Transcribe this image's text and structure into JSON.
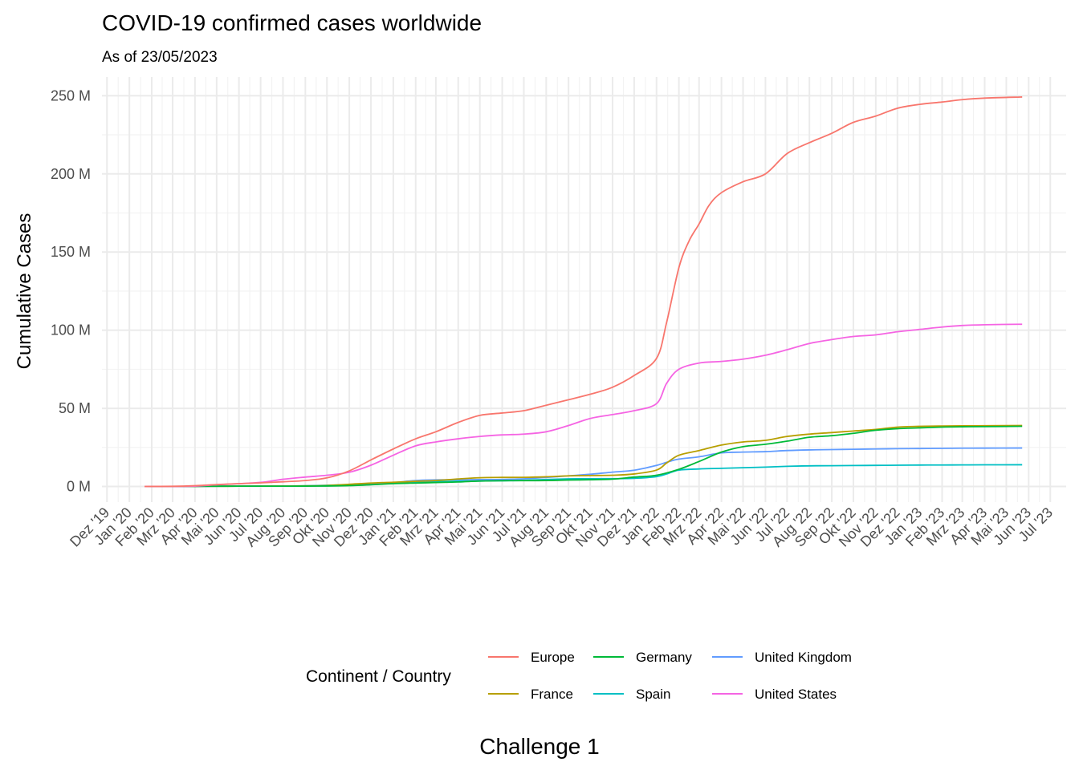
{
  "chart_data": {
    "type": "line",
    "title": "COVID-19 confirmed cases worldwide",
    "subtitle": "As of 23/05/2023",
    "ylabel": "Cumulative Cases",
    "xlabel": "",
    "caption": "Challenge 1",
    "legend_title": "Continent / Country",
    "legend_position": "bottom",
    "grid": true,
    "x_type": "date",
    "xlim": [
      "2019-11-24",
      "2023-07-23"
    ],
    "ylim": [
      -10000000,
      262000000
    ],
    "y_ticks": [
      0,
      50000000,
      100000000,
      150000000,
      200000000,
      250000000
    ],
    "y_tick_labels": [
      "0 M",
      "50 M",
      "100 M",
      "150 M",
      "200 M",
      "250 M"
    ],
    "x_ticks": [
      "2019-12-01",
      "2020-01-01",
      "2020-02-01",
      "2020-03-01",
      "2020-04-01",
      "2020-05-01",
      "2020-06-01",
      "2020-07-01",
      "2020-08-01",
      "2020-09-01",
      "2020-10-01",
      "2020-11-01",
      "2020-12-01",
      "2021-01-01",
      "2021-02-01",
      "2021-03-01",
      "2021-04-01",
      "2021-05-01",
      "2021-06-01",
      "2021-07-01",
      "2021-08-01",
      "2021-09-01",
      "2021-10-01",
      "2021-11-01",
      "2021-12-01",
      "2022-01-01",
      "2022-02-01",
      "2022-03-01",
      "2022-04-01",
      "2022-05-01",
      "2022-06-01",
      "2022-07-01",
      "2022-08-01",
      "2022-09-01",
      "2022-10-01",
      "2022-11-01",
      "2022-12-01",
      "2023-01-01",
      "2023-02-01",
      "2023-03-01",
      "2023-04-01",
      "2023-05-01",
      "2023-06-01",
      "2023-07-01"
    ],
    "x_tick_labels": [
      "Dez '19",
      "Jan '20",
      "Feb '20",
      "Mrz '20",
      "Apr '20",
      "Mai '20",
      "Jun '20",
      "Jul '20",
      "Aug '20",
      "Sep '20",
      "Okt '20",
      "Nov '20",
      "Dez '20",
      "Jan '21",
      "Feb '21",
      "Mrz '21",
      "Apr '21",
      "Mai '21",
      "Jun '21",
      "Jul '21",
      "Aug '21",
      "Sep '21",
      "Okt '21",
      "Nov '21",
      "Dez '21",
      "Jan '22",
      "Feb '22",
      "Mrz '22",
      "Apr '22",
      "Mai '22",
      "Jun '22",
      "Jul '22",
      "Aug '22",
      "Sep '22",
      "Okt '22",
      "Nov '22",
      "Dez '22",
      "Jan '23",
      "Feb '23",
      "Mrz '23",
      "Apr '23",
      "Mai '23",
      "Jun '23",
      "Jul '23"
    ],
    "series": [
      {
        "name": "Europe",
        "color": "#F8766D",
        "points": [
          [
            "2020-01-22",
            0
          ],
          [
            "2020-03-01",
            0.1
          ],
          [
            "2020-04-01",
            0.5
          ],
          [
            "2020-05-01",
            1.2
          ],
          [
            "2020-06-01",
            1.8
          ],
          [
            "2020-07-01",
            2.3
          ],
          [
            "2020-08-01",
            3
          ],
          [
            "2020-09-01",
            3.8
          ],
          [
            "2020-10-01",
            5.5
          ],
          [
            "2020-11-01",
            10
          ],
          [
            "2020-12-01",
            17
          ],
          [
            "2021-01-01",
            24
          ],
          [
            "2021-02-01",
            30.5
          ],
          [
            "2021-03-01",
            35
          ],
          [
            "2021-04-01",
            41
          ],
          [
            "2021-05-01",
            45.5
          ],
          [
            "2021-06-01",
            47
          ],
          [
            "2021-07-01",
            48.5
          ],
          [
            "2021-08-01",
            52
          ],
          [
            "2021-09-01",
            55.5
          ],
          [
            "2021-10-01",
            59
          ],
          [
            "2021-11-01",
            63.5
          ],
          [
            "2021-12-01",
            71
          ],
          [
            "2022-01-01",
            82
          ],
          [
            "2022-01-15",
            105
          ],
          [
            "2022-02-01",
            140
          ],
          [
            "2022-02-15",
            157
          ],
          [
            "2022-03-01",
            168
          ],
          [
            "2022-03-15",
            180
          ],
          [
            "2022-04-01",
            188
          ],
          [
            "2022-05-01",
            195
          ],
          [
            "2022-06-01",
            200
          ],
          [
            "2022-07-01",
            213
          ],
          [
            "2022-08-01",
            220
          ],
          [
            "2022-09-01",
            226
          ],
          [
            "2022-10-01",
            233
          ],
          [
            "2022-11-01",
            237
          ],
          [
            "2022-12-01",
            242
          ],
          [
            "2023-01-01",
            244.5
          ],
          [
            "2023-02-01",
            246
          ],
          [
            "2023-03-01",
            247.5
          ],
          [
            "2023-04-01",
            248.5
          ],
          [
            "2023-05-23",
            249.2
          ]
        ]
      },
      {
        "name": "France",
        "color": "#B79F00",
        "points": [
          [
            "2020-01-24",
            0
          ],
          [
            "2020-03-01",
            0
          ],
          [
            "2020-04-01",
            0.1
          ],
          [
            "2020-05-01",
            0.15
          ],
          [
            "2020-06-01",
            0.2
          ],
          [
            "2020-07-01",
            0.2
          ],
          [
            "2020-08-01",
            0.25
          ],
          [
            "2020-09-01",
            0.35
          ],
          [
            "2020-10-01",
            0.6
          ],
          [
            "2020-11-01",
            1.4
          ],
          [
            "2020-12-01",
            2.2
          ],
          [
            "2021-01-01",
            2.7
          ],
          [
            "2021-02-01",
            3.3
          ],
          [
            "2021-03-01",
            3.8
          ],
          [
            "2021-04-01",
            4.8
          ],
          [
            "2021-05-01",
            5.6
          ],
          [
            "2021-06-01",
            5.8
          ],
          [
            "2021-07-01",
            5.85
          ],
          [
            "2021-08-01",
            6.2
          ],
          [
            "2021-09-01",
            6.8
          ],
          [
            "2021-10-01",
            7
          ],
          [
            "2021-11-01",
            7.2
          ],
          [
            "2021-12-01",
            8
          ],
          [
            "2022-01-01",
            10.5
          ],
          [
            "2022-01-15",
            15
          ],
          [
            "2022-02-01",
            20
          ],
          [
            "2022-03-01",
            23
          ],
          [
            "2022-04-01",
            26.5
          ],
          [
            "2022-05-01",
            28.5
          ],
          [
            "2022-06-01",
            29.5
          ],
          [
            "2022-07-01",
            32
          ],
          [
            "2022-08-01",
            33.5
          ],
          [
            "2022-09-01",
            34.5
          ],
          [
            "2022-10-01",
            35.5
          ],
          [
            "2022-11-01",
            36.5
          ],
          [
            "2022-12-01",
            38
          ],
          [
            "2023-01-01",
            38.5
          ],
          [
            "2023-02-01",
            38.7
          ],
          [
            "2023-03-01",
            38.8
          ],
          [
            "2023-04-01",
            38.9
          ],
          [
            "2023-05-23",
            39
          ]
        ]
      },
      {
        "name": "Germany",
        "color": "#00BA38",
        "points": [
          [
            "2020-01-27",
            0
          ],
          [
            "2020-03-01",
            0
          ],
          [
            "2020-04-01",
            0.1
          ],
          [
            "2020-05-01",
            0.16
          ],
          [
            "2020-06-01",
            0.18
          ],
          [
            "2020-07-01",
            0.2
          ],
          [
            "2020-08-01",
            0.21
          ],
          [
            "2020-09-01",
            0.24
          ],
          [
            "2020-10-01",
            0.3
          ],
          [
            "2020-11-01",
            0.55
          ],
          [
            "2020-12-01",
            1.1
          ],
          [
            "2021-01-01",
            1.8
          ],
          [
            "2021-02-01",
            2.2
          ],
          [
            "2021-03-01",
            2.5
          ],
          [
            "2021-04-01",
            2.9
          ],
          [
            "2021-05-01",
            3.5
          ],
          [
            "2021-06-01",
            3.7
          ],
          [
            "2021-07-01",
            3.75
          ],
          [
            "2021-08-01",
            3.8
          ],
          [
            "2021-09-01",
            4.1
          ],
          [
            "2021-10-01",
            4.3
          ],
          [
            "2021-11-01",
            4.7
          ],
          [
            "2021-12-01",
            6
          ],
          [
            "2022-01-01",
            7.2
          ],
          [
            "2022-02-01",
            11
          ],
          [
            "2022-03-01",
            16
          ],
          [
            "2022-04-01",
            22
          ],
          [
            "2022-05-01",
            25.5
          ],
          [
            "2022-06-01",
            27
          ],
          [
            "2022-07-01",
            29
          ],
          [
            "2022-08-01",
            31.5
          ],
          [
            "2022-09-01",
            32.5
          ],
          [
            "2022-10-01",
            34
          ],
          [
            "2022-11-01",
            36
          ],
          [
            "2022-12-01",
            37
          ],
          [
            "2023-01-01",
            37.5
          ],
          [
            "2023-02-01",
            38
          ],
          [
            "2023-03-01",
            38.2
          ],
          [
            "2023-04-01",
            38.3
          ],
          [
            "2023-05-23",
            38.5
          ]
        ]
      },
      {
        "name": "Spain",
        "color": "#00BFC4",
        "points": [
          [
            "2020-02-01",
            0
          ],
          [
            "2020-03-01",
            0
          ],
          [
            "2020-04-01",
            0.1
          ],
          [
            "2020-05-01",
            0.2
          ],
          [
            "2020-06-01",
            0.24
          ],
          [
            "2020-07-01",
            0.25
          ],
          [
            "2020-08-01",
            0.3
          ],
          [
            "2020-09-01",
            0.45
          ],
          [
            "2020-10-01",
            0.75
          ],
          [
            "2020-11-01",
            1.2
          ],
          [
            "2020-12-01",
            1.7
          ],
          [
            "2021-01-01",
            2
          ],
          [
            "2021-02-01",
            2.9
          ],
          [
            "2021-03-01",
            3.2
          ],
          [
            "2021-04-01",
            3.3
          ],
          [
            "2021-05-01",
            3.5
          ],
          [
            "2021-06-01",
            3.7
          ],
          [
            "2021-07-01",
            3.9
          ],
          [
            "2021-08-01",
            4.5
          ],
          [
            "2021-09-01",
            4.85
          ],
          [
            "2021-10-01",
            4.95
          ],
          [
            "2021-11-01",
            5
          ],
          [
            "2021-12-01",
            5.2
          ],
          [
            "2022-01-01",
            6.3
          ],
          [
            "2022-01-15",
            8
          ],
          [
            "2022-02-01",
            10.5
          ],
          [
            "2022-03-01",
            11.2
          ],
          [
            "2022-04-01",
            11.6
          ],
          [
            "2022-05-01",
            12
          ],
          [
            "2022-06-01",
            12.4
          ],
          [
            "2022-07-01",
            12.9
          ],
          [
            "2022-08-01",
            13.2
          ],
          [
            "2022-09-01",
            13.3
          ],
          [
            "2022-10-01",
            13.4
          ],
          [
            "2022-11-01",
            13.5
          ],
          [
            "2022-12-01",
            13.6
          ],
          [
            "2023-01-01",
            13.7
          ],
          [
            "2023-02-01",
            13.75
          ],
          [
            "2023-03-01",
            13.8
          ],
          [
            "2023-04-01",
            13.85
          ],
          [
            "2023-05-23",
            13.9
          ]
        ]
      },
      {
        "name": "United Kingdom",
        "color": "#619CFF",
        "points": [
          [
            "2020-01-31",
            0
          ],
          [
            "2020-03-01",
            0
          ],
          [
            "2020-04-01",
            0.03
          ],
          [
            "2020-05-01",
            0.17
          ],
          [
            "2020-06-01",
            0.27
          ],
          [
            "2020-07-01",
            0.28
          ],
          [
            "2020-08-01",
            0.3
          ],
          [
            "2020-09-01",
            0.34
          ],
          [
            "2020-10-01",
            0.5
          ],
          [
            "2020-11-01",
            1
          ],
          [
            "2020-12-01",
            1.6
          ],
          [
            "2021-01-01",
            2.5
          ],
          [
            "2021-02-01",
            3.8
          ],
          [
            "2021-03-01",
            4.2
          ],
          [
            "2021-04-01",
            4.35
          ],
          [
            "2021-05-01",
            4.4
          ],
          [
            "2021-06-01",
            4.5
          ],
          [
            "2021-07-01",
            4.9
          ],
          [
            "2021-08-01",
            5.8
          ],
          [
            "2021-09-01",
            6.8
          ],
          [
            "2021-10-01",
            7.8
          ],
          [
            "2021-11-01",
            9.2
          ],
          [
            "2021-12-01",
            10.4
          ],
          [
            "2022-01-01",
            13.5
          ],
          [
            "2022-01-15",
            15.5
          ],
          [
            "2022-02-01",
            17.5
          ],
          [
            "2022-03-01",
            19
          ],
          [
            "2022-04-01",
            21.5
          ],
          [
            "2022-05-01",
            22
          ],
          [
            "2022-06-01",
            22.3
          ],
          [
            "2022-07-01",
            23
          ],
          [
            "2022-08-01",
            23.4
          ],
          [
            "2022-09-01",
            23.6
          ],
          [
            "2022-10-01",
            23.8
          ],
          [
            "2022-11-01",
            24
          ],
          [
            "2022-12-01",
            24.2
          ],
          [
            "2023-01-01",
            24.3
          ],
          [
            "2023-02-01",
            24.4
          ],
          [
            "2023-03-01",
            24.5
          ],
          [
            "2023-04-01",
            24.55
          ],
          [
            "2023-05-23",
            24.6
          ]
        ]
      },
      {
        "name": "United States",
        "color": "#F564E3",
        "points": [
          [
            "2020-01-22",
            0
          ],
          [
            "2020-03-01",
            0
          ],
          [
            "2020-04-01",
            0.2
          ],
          [
            "2020-05-01",
            1.1
          ],
          [
            "2020-06-01",
            1.8
          ],
          [
            "2020-07-01",
            2.6
          ],
          [
            "2020-08-01",
            4.6
          ],
          [
            "2020-09-01",
            6
          ],
          [
            "2020-10-01",
            7.2
          ],
          [
            "2020-11-01",
            9.1
          ],
          [
            "2020-12-01",
            13.6
          ],
          [
            "2021-01-01",
            20
          ],
          [
            "2021-02-01",
            26
          ],
          [
            "2021-03-01",
            28.5
          ],
          [
            "2021-04-01",
            30.5
          ],
          [
            "2021-05-01",
            32
          ],
          [
            "2021-06-01",
            33
          ],
          [
            "2021-07-01",
            33.5
          ],
          [
            "2021-08-01",
            35
          ],
          [
            "2021-09-01",
            39
          ],
          [
            "2021-10-01",
            43.5
          ],
          [
            "2021-11-01",
            46
          ],
          [
            "2021-12-01",
            48.5
          ],
          [
            "2022-01-01",
            53
          ],
          [
            "2022-01-15",
            66
          ],
          [
            "2022-02-01",
            75
          ],
          [
            "2022-03-01",
            79
          ],
          [
            "2022-04-01",
            80
          ],
          [
            "2022-05-01",
            81.5
          ],
          [
            "2022-06-01",
            84
          ],
          [
            "2022-07-01",
            87.5
          ],
          [
            "2022-08-01",
            91.5
          ],
          [
            "2022-09-01",
            94
          ],
          [
            "2022-10-01",
            96
          ],
          [
            "2022-11-01",
            97
          ],
          [
            "2022-12-01",
            99
          ],
          [
            "2023-01-01",
            100.5
          ],
          [
            "2023-02-01",
            102
          ],
          [
            "2023-03-01",
            103
          ],
          [
            "2023-04-01",
            103.5
          ],
          [
            "2023-05-23",
            103.8
          ]
        ]
      }
    ]
  }
}
